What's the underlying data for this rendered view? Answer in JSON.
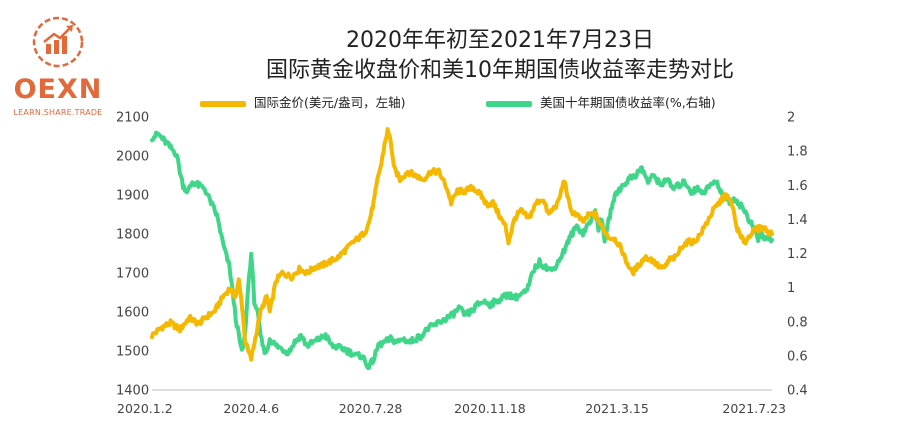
{
  "brand": {
    "name": "OEXN",
    "tagline": "LEARN.SHARE.TRADE"
  },
  "title_line1": "2020年年初至2021年7月23日",
  "title_line2": "国际黄金收盘价和美10年期国债收益率走势对比",
  "colors": {
    "gold": "#f5b800",
    "yield": "#3fd68a",
    "axis": "#444444",
    "brand": "#e2693a"
  },
  "chart_data": {
    "type": "line",
    "title": "2020年年初至2021年7月23日 国际黄金收盘价和美10年期国债收益率走势对比",
    "x_tick_labels": [
      "2020.1.2",
      "2020.4.6",
      "2020.7.28",
      "2020.11.18",
      "2021.3.15",
      "2021.7.23"
    ],
    "x_tick_index": [
      0,
      64,
      141,
      218,
      300,
      387
    ],
    "left_axis": {
      "label": "国际金价(美元/盎司，左轴)",
      "ylim": [
        1400,
        2100
      ],
      "ticks": [
        1400,
        1500,
        1600,
        1700,
        1800,
        1900,
        2000,
        2100
      ]
    },
    "right_axis": {
      "label": "美国十年期国债收益率(%,右轴)",
      "ylim": [
        0.4,
        2.0
      ],
      "ticks": [
        0.4,
        0.6,
        0.8,
        1.0,
        1.2,
        1.4,
        1.6,
        1.8,
        2.0
      ],
      "tick_labels": [
        "0.4",
        "0.6",
        "0.8",
        "1",
        "1.2",
        "1.4",
        "1.6",
        "1.8",
        "2"
      ]
    },
    "series": [
      {
        "name": "国际金价(美元/盎司，左轴)",
        "axis": "left",
        "points": [
          [
            0,
            1540
          ],
          [
            6,
            1560
          ],
          [
            12,
            1572
          ],
          [
            18,
            1555
          ],
          [
            24,
            1585
          ],
          [
            30,
            1570
          ],
          [
            36,
            1590
          ],
          [
            40,
            1600
          ],
          [
            46,
            1640
          ],
          [
            50,
            1660
          ],
          [
            54,
            1640
          ],
          [
            56,
            1680
          ],
          [
            58,
            1620
          ],
          [
            60,
            1530
          ],
          [
            62,
            1500
          ],
          [
            64,
            1480
          ],
          [
            66,
            1520
          ],
          [
            70,
            1600
          ],
          [
            74,
            1640
          ],
          [
            76,
            1600
          ],
          [
            80,
            1680
          ],
          [
            84,
            1700
          ],
          [
            90,
            1690
          ],
          [
            95,
            1710
          ],
          [
            100,
            1700
          ],
          [
            105,
            1715
          ],
          [
            110,
            1720
          ],
          [
            115,
            1730
          ],
          [
            120,
            1740
          ],
          [
            125,
            1760
          ],
          [
            130,
            1780
          ],
          [
            135,
            1795
          ],
          [
            138,
            1810
          ],
          [
            140,
            1830
          ],
          [
            143,
            1880
          ],
          [
            146,
            1950
          ],
          [
            148,
            1980
          ],
          [
            150,
            2030
          ],
          [
            152,
            2065
          ],
          [
            154,
            2040
          ],
          [
            156,
            1970
          ],
          [
            160,
            1940
          ],
          [
            165,
            1960
          ],
          [
            170,
            1950
          ],
          [
            175,
            1940
          ],
          [
            180,
            1960
          ],
          [
            185,
            1960
          ],
          [
            190,
            1920
          ],
          [
            193,
            1880
          ],
          [
            197,
            1910
          ],
          [
            202,
            1910
          ],
          [
            207,
            1920
          ],
          [
            212,
            1900
          ],
          [
            216,
            1875
          ],
          [
            220,
            1880
          ],
          [
            225,
            1840
          ],
          [
            228,
            1820
          ],
          [
            230,
            1780
          ],
          [
            234,
            1840
          ],
          [
            238,
            1860
          ],
          [
            243,
            1840
          ],
          [
            248,
            1880
          ],
          [
            252,
            1890
          ],
          [
            256,
            1850
          ],
          [
            262,
            1880
          ],
          [
            266,
            1940
          ],
          [
            270,
            1860
          ],
          [
            274,
            1850
          ],
          [
            278,
            1830
          ],
          [
            282,
            1850
          ],
          [
            286,
            1850
          ],
          [
            290,
            1820
          ],
          [
            295,
            1790
          ],
          [
            298,
            1790
          ],
          [
            300,
            1780
          ],
          [
            303,
            1760
          ],
          [
            306,
            1730
          ],
          [
            310,
            1700
          ],
          [
            314,
            1720
          ],
          [
            318,
            1740
          ],
          [
            322,
            1735
          ],
          [
            326,
            1720
          ],
          [
            330,
            1710
          ],
          [
            334,
            1735
          ],
          [
            338,
            1740
          ],
          [
            342,
            1770
          ],
          [
            346,
            1780
          ],
          [
            350,
            1780
          ],
          [
            354,
            1800
          ],
          [
            358,
            1830
          ],
          [
            362,
            1860
          ],
          [
            366,
            1880
          ],
          [
            370,
            1900
          ],
          [
            374,
            1880
          ],
          [
            377,
            1820
          ],
          [
            380,
            1790
          ],
          [
            383,
            1780
          ],
          [
            386,
            1800
          ],
          [
            389,
            1810
          ],
          [
            392,
            1815
          ],
          [
            395,
            1815
          ],
          [
            398,
            1805
          ],
          [
            400,
            1800
          ]
        ]
      },
      {
        "name": "美国十年期国债收益率(%,右轴)",
        "axis": "right",
        "points": [
          [
            0,
            1.88
          ],
          [
            4,
            1.9
          ],
          [
            8,
            1.86
          ],
          [
            12,
            1.82
          ],
          [
            16,
            1.78
          ],
          [
            18,
            1.68
          ],
          [
            20,
            1.6
          ],
          [
            23,
            1.56
          ],
          [
            26,
            1.62
          ],
          [
            30,
            1.6
          ],
          [
            34,
            1.58
          ],
          [
            38,
            1.5
          ],
          [
            42,
            1.42
          ],
          [
            46,
            1.25
          ],
          [
            50,
            1.12
          ],
          [
            52,
            0.98
          ],
          [
            54,
            0.82
          ],
          [
            56,
            0.72
          ],
          [
            58,
            0.62
          ],
          [
            60,
            0.72
          ],
          [
            62,
            1.0
          ],
          [
            64,
            1.2
          ],
          [
            66,
            0.92
          ],
          [
            68,
            0.86
          ],
          [
            70,
            0.72
          ],
          [
            72,
            0.64
          ],
          [
            74,
            0.62
          ],
          [
            76,
            0.7
          ],
          [
            80,
            0.66
          ],
          [
            84,
            0.64
          ],
          [
            88,
            0.62
          ],
          [
            92,
            0.68
          ],
          [
            96,
            0.72
          ],
          [
            100,
            0.66
          ],
          [
            104,
            0.68
          ],
          [
            108,
            0.7
          ],
          [
            112,
            0.72
          ],
          [
            116,
            0.66
          ],
          [
            120,
            0.65
          ],
          [
            124,
            0.64
          ],
          [
            128,
            0.62
          ],
          [
            132,
            0.6
          ],
          [
            136,
            0.6
          ],
          [
            138,
            0.55
          ],
          [
            140,
            0.54
          ],
          [
            143,
            0.58
          ],
          [
            146,
            0.66
          ],
          [
            150,
            0.68
          ],
          [
            154,
            0.7
          ],
          [
            158,
            0.68
          ],
          [
            162,
            0.7
          ],
          [
            166,
            0.68
          ],
          [
            170,
            0.7
          ],
          [
            174,
            0.72
          ],
          [
            178,
            0.76
          ],
          [
            182,
            0.78
          ],
          [
            186,
            0.8
          ],
          [
            190,
            0.82
          ],
          [
            194,
            0.84
          ],
          [
            198,
            0.88
          ],
          [
            202,
            0.84
          ],
          [
            206,
            0.86
          ],
          [
            210,
            0.9
          ],
          [
            214,
            0.92
          ],
          [
            218,
            0.9
          ],
          [
            222,
            0.92
          ],
          [
            226,
            0.94
          ],
          [
            230,
            0.96
          ],
          [
            234,
            0.94
          ],
          [
            238,
            0.96
          ],
          [
            242,
            0.98
          ],
          [
            246,
            1.1
          ],
          [
            250,
            1.15
          ],
          [
            254,
            1.12
          ],
          [
            258,
            1.1
          ],
          [
            262,
            1.15
          ],
          [
            266,
            1.22
          ],
          [
            270,
            1.3
          ],
          [
            274,
            1.36
          ],
          [
            278,
            1.32
          ],
          [
            282,
            1.38
          ],
          [
            286,
            1.45
          ],
          [
            288,
            1.35
          ],
          [
            290,
            1.4
          ],
          [
            292,
            1.28
          ],
          [
            294,
            1.36
          ],
          [
            296,
            1.45
          ],
          [
            298,
            1.52
          ],
          [
            300,
            1.56
          ],
          [
            304,
            1.6
          ],
          [
            308,
            1.64
          ],
          [
            312,
            1.66
          ],
          [
            316,
            1.7
          ],
          [
            320,
            1.62
          ],
          [
            324,
            1.66
          ],
          [
            328,
            1.6
          ],
          [
            332,
            1.64
          ],
          [
            336,
            1.58
          ],
          [
            340,
            1.6
          ],
          [
            344,
            1.62
          ],
          [
            348,
            1.56
          ],
          [
            352,
            1.58
          ],
          [
            356,
            1.56
          ],
          [
            360,
            1.6
          ],
          [
            364,
            1.62
          ],
          [
            368,
            1.55
          ],
          [
            372,
            1.5
          ],
          [
            376,
            1.52
          ],
          [
            380,
            1.48
          ],
          [
            383,
            1.44
          ],
          [
            386,
            1.38
          ],
          [
            389,
            1.34
          ],
          [
            391,
            1.28
          ],
          [
            393,
            1.32
          ],
          [
            395,
            1.28
          ],
          [
            397,
            1.3
          ],
          [
            400,
            1.28
          ]
        ]
      }
    ]
  }
}
